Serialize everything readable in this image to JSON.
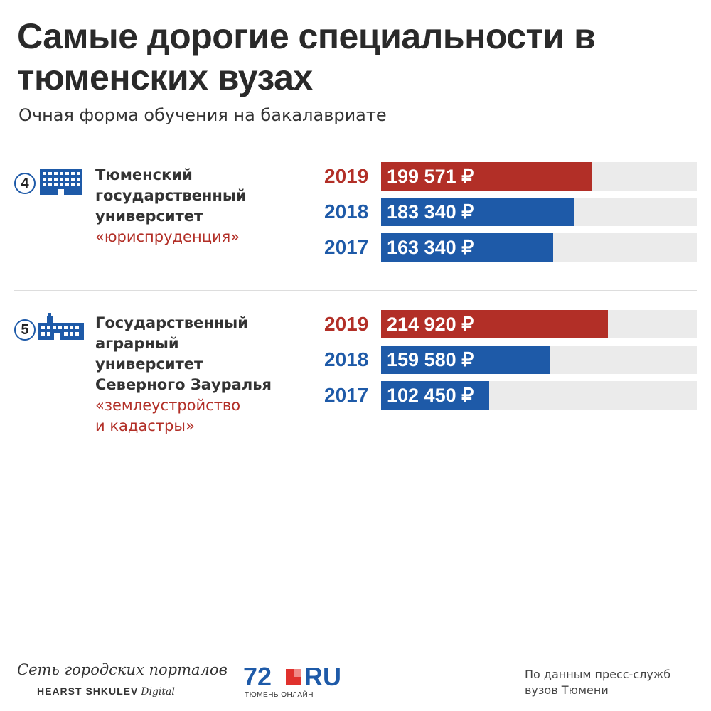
{
  "title": "Самые дорогие специальности в тюменских вузах",
  "subtitle": "Очная форма обучения на бакалавриате",
  "colors": {
    "red": "#b22f27",
    "blue": "#1e5aa8",
    "track": "#ebebeb"
  },
  "chart_data": {
    "type": "bar",
    "orientation": "horizontal",
    "title": "Самые дорогие специальности в тюменских вузах",
    "subtitle": "Очная форма обучения на бакалавриате",
    "xlim": [
      0,
      300000
    ],
    "groups": [
      {
        "rank": "4",
        "icon": "building-icon",
        "university": "Тюменский\nгосударственный\nуниверситет",
        "specialty": "«юриспруденция»",
        "bars": [
          {
            "year": "2019",
            "value": 199571,
            "label": "199 571 ₽",
            "color": "#b22f27"
          },
          {
            "year": "2018",
            "value": 183340,
            "label": "183 340 ₽",
            "color": "#1e5aa8"
          },
          {
            "year": "2017",
            "value": 163340,
            "label": "163 340 ₽",
            "color": "#1e5aa8"
          }
        ]
      },
      {
        "rank": "5",
        "icon": "campus-icon",
        "university": "Государственный\nаграрный\nуниверситет\nСеверного Зауралья",
        "specialty": "«землеустройство\nи кадастры»",
        "bars": [
          {
            "year": "2019",
            "value": 214920,
            "label": "214 920 ₽",
            "color": "#b22f27"
          },
          {
            "year": "2018",
            "value": 159580,
            "label": "159 580 ₽",
            "color": "#1e5aa8"
          },
          {
            "year": "2017",
            "value": 102450,
            "label": "102 450 ₽",
            "color": "#1e5aa8"
          }
        ]
      }
    ]
  },
  "footer": {
    "brand": "Сеть городских порталов",
    "brand_sub_bold": "HEARST SHKULEV",
    "brand_sub_italic": "Digital",
    "logo_num": "72",
    "logo_ru": "RU",
    "logo_sub": "ТЮМЕНЬ ОНЛАЙН",
    "source": "По данным пресс-служб\nвузов Тюмени"
  }
}
